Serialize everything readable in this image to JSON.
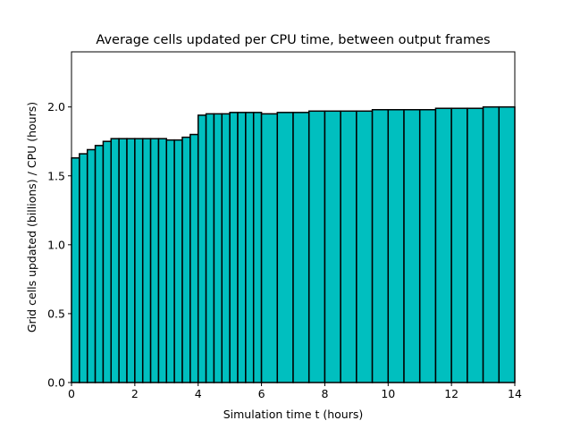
{
  "chart_data": {
    "type": "bar",
    "title": "Average cells updated per CPU time, between output frames",
    "xlabel": "Simulation time t (hours)",
    "ylabel": "Grid cells updated (billions) / CPU (hours)",
    "xlim": [
      0,
      14
    ],
    "ylim": [
      0,
      2.4
    ],
    "xticks": [
      "0",
      "2",
      "4",
      "6",
      "8",
      "10",
      "12",
      "14"
    ],
    "yticks": [
      "0.0",
      "0.5",
      "1.0",
      "1.5",
      "2.0"
    ],
    "grid": false,
    "bar_color": "#00bfbf",
    "edge_color": "#000000",
    "bars": [
      {
        "x0": 0.0,
        "x1": 0.25,
        "value": 1.63
      },
      {
        "x0": 0.25,
        "x1": 0.5,
        "value": 1.66
      },
      {
        "x0": 0.5,
        "x1": 0.75,
        "value": 1.69
      },
      {
        "x0": 0.75,
        "x1": 1.0,
        "value": 1.72
      },
      {
        "x0": 1.0,
        "x1": 1.25,
        "value": 1.75
      },
      {
        "x0": 1.25,
        "x1": 1.5,
        "value": 1.77
      },
      {
        "x0": 1.5,
        "x1": 1.75,
        "value": 1.77
      },
      {
        "x0": 1.75,
        "x1": 2.0,
        "value": 1.77
      },
      {
        "x0": 2.0,
        "x1": 2.25,
        "value": 1.77
      },
      {
        "x0": 2.25,
        "x1": 2.5,
        "value": 1.77
      },
      {
        "x0": 2.5,
        "x1": 2.75,
        "value": 1.77
      },
      {
        "x0": 2.75,
        "x1": 3.0,
        "value": 1.77
      },
      {
        "x0": 3.0,
        "x1": 3.25,
        "value": 1.76
      },
      {
        "x0": 3.25,
        "x1": 3.5,
        "value": 1.76
      },
      {
        "x0": 3.5,
        "x1": 3.75,
        "value": 1.78
      },
      {
        "x0": 3.75,
        "x1": 4.0,
        "value": 1.8
      },
      {
        "x0": 4.0,
        "x1": 4.25,
        "value": 1.94
      },
      {
        "x0": 4.25,
        "x1": 4.5,
        "value": 1.95
      },
      {
        "x0": 4.5,
        "x1": 4.75,
        "value": 1.95
      },
      {
        "x0": 4.75,
        "x1": 5.0,
        "value": 1.95
      },
      {
        "x0": 5.0,
        "x1": 5.25,
        "value": 1.96
      },
      {
        "x0": 5.25,
        "x1": 5.5,
        "value": 1.96
      },
      {
        "x0": 5.5,
        "x1": 5.75,
        "value": 1.96
      },
      {
        "x0": 5.75,
        "x1": 6.0,
        "value": 1.96
      },
      {
        "x0": 6.0,
        "x1": 6.5,
        "value": 1.95
      },
      {
        "x0": 6.5,
        "x1": 7.0,
        "value": 1.96
      },
      {
        "x0": 7.0,
        "x1": 7.5,
        "value": 1.96
      },
      {
        "x0": 7.5,
        "x1": 8.0,
        "value": 1.97
      },
      {
        "x0": 8.0,
        "x1": 8.5,
        "value": 1.97
      },
      {
        "x0": 8.5,
        "x1": 9.0,
        "value": 1.97
      },
      {
        "x0": 9.0,
        "x1": 9.5,
        "value": 1.97
      },
      {
        "x0": 9.5,
        "x1": 10.0,
        "value": 1.98
      },
      {
        "x0": 10.0,
        "x1": 10.5,
        "value": 1.98
      },
      {
        "x0": 10.5,
        "x1": 11.0,
        "value": 1.98
      },
      {
        "x0": 11.0,
        "x1": 11.5,
        "value": 1.98
      },
      {
        "x0": 11.5,
        "x1": 12.0,
        "value": 1.99
      },
      {
        "x0": 12.0,
        "x1": 12.5,
        "value": 1.99
      },
      {
        "x0": 12.5,
        "x1": 13.0,
        "value": 1.99
      },
      {
        "x0": 13.0,
        "x1": 13.5,
        "value": 2.0
      },
      {
        "x0": 13.5,
        "x1": 14.0,
        "value": 2.0
      }
    ]
  }
}
